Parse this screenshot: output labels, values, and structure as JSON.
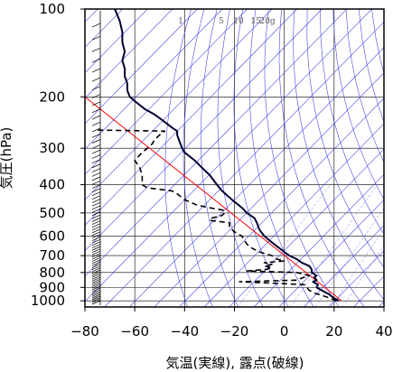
{
  "chart_data": {
    "type": "line",
    "title": "",
    "xlabel": "気温(実線), 露点(破線)",
    "ylabel": "気圧(hPa)",
    "xlim": [
      -80,
      40
    ],
    "ylim": [
      1050,
      100
    ],
    "y_scale": "log",
    "x_ticks": [
      -80,
      -60,
      -40,
      -20,
      0,
      20,
      40
    ],
    "x_tick_labels": [
      "−80",
      "−60",
      "−40",
      "−20",
      "0",
      "20",
      "40"
    ],
    "y_ticks": [
      100,
      200,
      300,
      400,
      500,
      600,
      700,
      800,
      900,
      1000
    ],
    "y_tick_labels": [
      "100",
      "200",
      "300",
      "400",
      "500",
      "600",
      "700",
      "800",
      "900",
      "1000"
    ],
    "mixing_ratio_labels": [
      "1",
      "5",
      "10",
      "15",
      "20g"
    ],
    "mixing_ratio_values": [
      1,
      5,
      10,
      15,
      20
    ],
    "grid": true,
    "series": [
      {
        "kind": "temperature",
        "style": "solid",
        "color": "#000033",
        "points": [
          [
            1000,
            22
          ],
          [
            980,
            20
          ],
          [
            950,
            18
          ],
          [
            920,
            15
          ],
          [
            900,
            13
          ],
          [
            880,
            13.5
          ],
          [
            860,
            11.5
          ],
          [
            850,
            13
          ],
          [
            830,
            12
          ],
          [
            820,
            13
          ],
          [
            800,
            11
          ],
          [
            780,
            11
          ],
          [
            760,
            10
          ],
          [
            740,
            7
          ],
          [
            720,
            5
          ],
          [
            700,
            2
          ],
          [
            680,
            0
          ],
          [
            650,
            -3
          ],
          [
            620,
            -6
          ],
          [
            600,
            -8
          ],
          [
            570,
            -10
          ],
          [
            540,
            -11
          ],
          [
            520,
            -12
          ],
          [
            500,
            -15
          ],
          [
            480,
            -17
          ],
          [
            450,
            -21
          ],
          [
            420,
            -25
          ],
          [
            400,
            -27
          ],
          [
            370,
            -30
          ],
          [
            350,
            -33
          ],
          [
            330,
            -36
          ],
          [
            310,
            -40
          ],
          [
            300,
            -41
          ],
          [
            285,
            -42
          ],
          [
            270,
            -43
          ],
          [
            262,
            -43
          ],
          [
            255,
            -45
          ],
          [
            240,
            -49
          ],
          [
            230,
            -52
          ],
          [
            220,
            -56
          ],
          [
            210,
            -59
          ],
          [
            200,
            -62
          ],
          [
            190,
            -63
          ],
          [
            180,
            -63
          ],
          [
            170,
            -64
          ],
          [
            160,
            -64
          ],
          [
            150,
            -65
          ],
          [
            140,
            -64
          ],
          [
            130,
            -65
          ],
          [
            120,
            -65
          ],
          [
            110,
            -66
          ],
          [
            100,
            -68
          ]
        ]
      },
      {
        "kind": "dewpoint",
        "style": "dashed",
        "color": "#000000",
        "points": [
          [
            1000,
            21
          ],
          [
            970,
            17
          ],
          [
            940,
            12
          ],
          [
            920,
            10
          ],
          [
            900,
            9
          ],
          [
            880,
            8
          ],
          [
            870,
            -5
          ],
          [
            860,
            -18
          ],
          [
            850,
            5
          ],
          [
            830,
            8
          ],
          [
            820,
            10
          ],
          [
            800,
            5
          ],
          [
            790,
            -15
          ],
          [
            780,
            -7
          ],
          [
            770,
            -5
          ],
          [
            760,
            -8
          ],
          [
            750,
            -5
          ],
          [
            740,
            -8
          ],
          [
            730,
            0
          ],
          [
            720,
            -3
          ],
          [
            700,
            -5
          ],
          [
            680,
            -10
          ],
          [
            660,
            -13
          ],
          [
            640,
            -15
          ],
          [
            600,
            -17
          ],
          [
            580,
            -20
          ],
          [
            560,
            -22
          ],
          [
            540,
            -22
          ],
          [
            530,
            -30
          ],
          [
            520,
            -29
          ],
          [
            510,
            -25
          ],
          [
            500,
            -24
          ],
          [
            490,
            -24
          ],
          [
            480,
            -30
          ],
          [
            470,
            -35
          ],
          [
            450,
            -40
          ],
          [
            430,
            -43
          ],
          [
            420,
            -45
          ],
          [
            410,
            -55
          ],
          [
            400,
            -57
          ],
          [
            390,
            -57
          ],
          [
            370,
            -57
          ],
          [
            350,
            -58
          ],
          [
            330,
            -60
          ],
          [
            310,
            -57
          ],
          [
            300,
            -55
          ],
          [
            290,
            -53
          ],
          [
            280,
            -52
          ],
          [
            270,
            -50
          ],
          [
            262,
            -48
          ],
          [
            260,
            -75
          ]
        ]
      }
    ],
    "reference_line": {
      "kind": "dry_adiabat",
      "color": "#ff0000",
      "points": [
        [
          1000,
          23
        ],
        [
          200,
          -80
        ]
      ]
    }
  }
}
